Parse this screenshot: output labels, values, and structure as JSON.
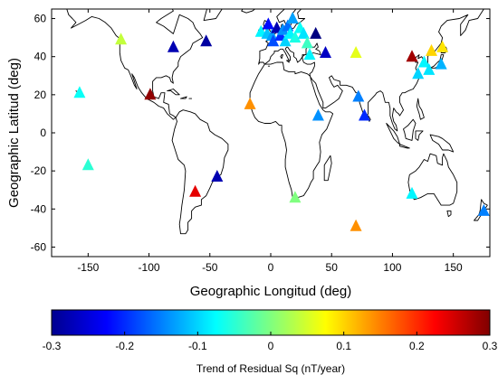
{
  "chart_data": {
    "type": "scatter",
    "title": "",
    "xlabel": "Geographic Longitud (deg)",
    "ylabel": "Geographic Latitud (deg)",
    "xlim": [
      -180,
      180
    ],
    "ylim": [
      -65,
      65
    ],
    "x_ticks": [
      "-150",
      "-100",
      "-50",
      "0",
      "50",
      "100",
      "150"
    ],
    "y_ticks": [
      "60",
      "40",
      "20",
      "0",
      "-20",
      "-40",
      "-60"
    ],
    "marker": "triangle",
    "grid": false,
    "basemap": "world coastlines",
    "colorbar": {
      "label": "Trend of Residual Sq (nT/year)",
      "range": [
        -0.3,
        0.3
      ],
      "ticks": [
        "-0.3",
        "-0.2",
        "-0.1",
        "0",
        "0.1",
        "0.2",
        "0.3"
      ],
      "colormap": "jet",
      "placement": "bottom"
    },
    "points": [
      {
        "lon": -123,
        "lat": 49,
        "trend": 0.04
      },
      {
        "lon": -80,
        "lat": 45,
        "trend": -0.27
      },
      {
        "lon": -53,
        "lat": 48,
        "trend": -0.28
      },
      {
        "lon": -157,
        "lat": 21,
        "trend": -0.07
      },
      {
        "lon": -99,
        "lat": 20,
        "trend": 0.29
      },
      {
        "lon": -150,
        "lat": -17,
        "trend": -0.05
      },
      {
        "lon": -17,
        "lat": 15,
        "trend": 0.14
      },
      {
        "lon": -62,
        "lat": -31,
        "trend": 0.24
      },
      {
        "lon": -44,
        "lat": -23,
        "trend": -0.27
      },
      {
        "lon": -8,
        "lat": 53,
        "trend": -0.08
      },
      {
        "lon": -3,
        "lat": 52,
        "trend": -0.11
      },
      {
        "lon": -2,
        "lat": 57,
        "trend": -0.22
      },
      {
        "lon": 1,
        "lat": 51,
        "trend": -0.13
      },
      {
        "lon": 2,
        "lat": 48,
        "trend": -0.18
      },
      {
        "lon": 5,
        "lat": 55,
        "trend": -0.27
      },
      {
        "lon": 8,
        "lat": 51,
        "trend": -0.2
      },
      {
        "lon": 10,
        "lat": 54,
        "trend": -0.14
      },
      {
        "lon": 12,
        "lat": 48,
        "trend": -0.1
      },
      {
        "lon": 14,
        "lat": 56,
        "trend": -0.16
      },
      {
        "lon": 16,
        "lat": 52,
        "trend": -0.08
      },
      {
        "lon": 18,
        "lat": 60,
        "trend": -0.13
      },
      {
        "lon": 20,
        "lat": 50,
        "trend": -0.06
      },
      {
        "lon": 24,
        "lat": 55,
        "trend": -0.07
      },
      {
        "lon": 27,
        "lat": 52,
        "trend": -0.09
      },
      {
        "lon": 30,
        "lat": 47,
        "trend": -0.04
      },
      {
        "lon": 32,
        "lat": 41,
        "trend": -0.08
      },
      {
        "lon": 37,
        "lat": 52,
        "trend": -0.3
      },
      {
        "lon": 45,
        "lat": 42,
        "trend": -0.26
      },
      {
        "lon": 70,
        "lat": 42,
        "trend": 0.06
      },
      {
        "lon": 72,
        "lat": 19,
        "trend": -0.15
      },
      {
        "lon": 77,
        "lat": 9,
        "trend": -0.2
      },
      {
        "lon": 39,
        "lat": 9,
        "trend": -0.14
      },
      {
        "lon": 20,
        "lat": -34,
        "trend": 0.0
      },
      {
        "lon": 70,
        "lat": -49,
        "trend": 0.14
      },
      {
        "lon": 116,
        "lat": 40,
        "trend": 0.28
      },
      {
        "lon": 121,
        "lat": 31,
        "trend": -0.1
      },
      {
        "lon": 126,
        "lat": 37,
        "trend": -0.08
      },
      {
        "lon": 130,
        "lat": 33,
        "trend": -0.09
      },
      {
        "lon": 132,
        "lat": 43,
        "trend": 0.1
      },
      {
        "lon": 140,
        "lat": 36,
        "trend": -0.12
      },
      {
        "lon": 141,
        "lat": 45,
        "trend": 0.09
      },
      {
        "lon": 116,
        "lat": -32,
        "trend": -0.08
      },
      {
        "lon": 175,
        "lat": -41,
        "trend": -0.15
      }
    ]
  }
}
